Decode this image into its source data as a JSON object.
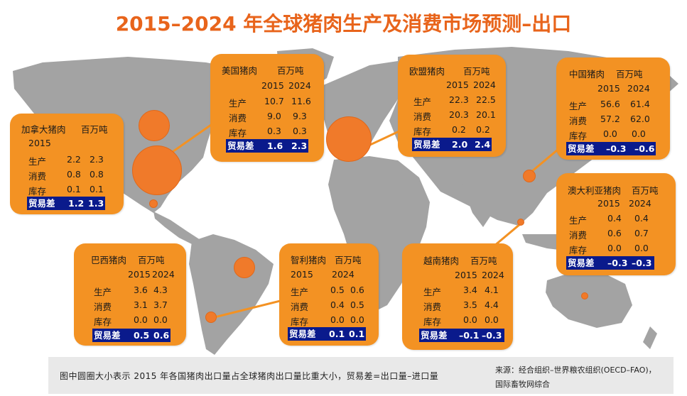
{
  "title": "2015–2024 年全球猪肉生产及消费市场预测–出口",
  "cards": {
    "canada": {
      "title": "加拿大猪肉",
      "unit": "百万吨",
      "year1": "2015",
      "year2": "",
      "rows": [
        {
          "label": "生产",
          "v1": "2.2",
          "v2": "2.3"
        },
        {
          "label": "消费",
          "v1": "0.8",
          "v2": "0.8"
        },
        {
          "label": "库存",
          "v1": "0.1",
          "v2": "0.1"
        }
      ],
      "trade": {
        "label": "贸易差",
        "v1": "1.2",
        "v2": "1.3"
      }
    },
    "usa": {
      "title": "美国猪肉",
      "unit": "百万吨",
      "year1": "2015",
      "year2": "2024",
      "rows": [
        {
          "label": "生产",
          "v1": "10.7",
          "v2": "11.6"
        },
        {
          "label": "消费",
          "v1": "9.0",
          "v2": "9.3"
        },
        {
          "label": "库存",
          "v1": "0.3",
          "v2": "0.3"
        }
      ],
      "trade": {
        "label": "贸易差",
        "v1": "1.6",
        "v2": "2.3"
      }
    },
    "eu": {
      "title": "欧盟猪肉",
      "unit": "百万吨",
      "year1": "2015",
      "year2": "2024",
      "rows": [
        {
          "label": "生产",
          "v1": "22.3",
          "v2": "22.5"
        },
        {
          "label": "消费",
          "v1": "20.3",
          "v2": "20.1"
        },
        {
          "label": "库存",
          "v1": "0.2",
          "v2": "0.2"
        }
      ],
      "trade": {
        "label": "贸易差",
        "v1": "2.0",
        "v2": "2.4"
      }
    },
    "china": {
      "title": "中国猪肉",
      "unit": "百万吨",
      "year1": "2015",
      "year2": "2024",
      "rows": [
        {
          "label": "生产",
          "v1": "56.6",
          "v2": "61.4"
        },
        {
          "label": "消费",
          "v1": "57.2",
          "v2": "62.0"
        },
        {
          "label": "库存",
          "v1": "0.0",
          "v2": "0.0"
        }
      ],
      "trade": {
        "label": "贸易差",
        "v1": "–0.3",
        "v2": "–0.6"
      }
    },
    "australia": {
      "title": "澳大利亚猪肉",
      "unit": "百万吨",
      "year1": "2015",
      "year2": "2024",
      "rows": [
        {
          "label": "生产",
          "v1": "0.4",
          "v2": "0.4"
        },
        {
          "label": "消费",
          "v1": "0.6",
          "v2": "0.7"
        },
        {
          "label": "库存",
          "v1": "0.0",
          "v2": "0.0"
        }
      ],
      "trade": {
        "label": "贸易差",
        "v1": "–0.3",
        "v2": "–0.3"
      }
    },
    "brazil": {
      "title": "巴西猪肉",
      "unit": "百万吨",
      "year1": "2015",
      "year2": "2024",
      "rows": [
        {
          "label": "生产",
          "v1": "3.6",
          "v2": "4.3"
        },
        {
          "label": "消费",
          "v1": "3.1",
          "v2": "3.7"
        },
        {
          "label": "库存",
          "v1": "0.0",
          "v2": "0.0"
        }
      ],
      "trade": {
        "label": "贸易差",
        "v1": "0.5",
        "v2": "0.6"
      }
    },
    "chile": {
      "title": "智利猪肉",
      "unit": "百万吨",
      "year1": "2015",
      "year2": "2024",
      "rows": [
        {
          "label": "生产",
          "v1": "0.5",
          "v2": "0.6"
        },
        {
          "label": "消费",
          "v1": "0.4",
          "v2": "0.5"
        },
        {
          "label": "库存",
          "v1": "0.0",
          "v2": "0.0"
        }
      ],
      "trade": {
        "label": "贸易差",
        "v1": "0.1",
        "v2": "0.1"
      }
    },
    "vietnam": {
      "title": "越南猪肉",
      "unit": "百万吨",
      "year1": "2015",
      "year2": "2024",
      "rows": [
        {
          "label": "生产",
          "v1": "3.4",
          "v2": "4.1"
        },
        {
          "label": "消费",
          "v1": "3.5",
          "v2": "4.4"
        },
        {
          "label": "库存",
          "v1": "0.0",
          "v2": "0.0"
        }
      ],
      "trade": {
        "label": "贸易差",
        "v1": "–0.1",
        "v2": "–0.3"
      }
    }
  },
  "footer": {
    "note": "图中圆圈大小表示 2015 年各国猪肉出口量占全球猪肉出口量比重大小，贸易差=出口量–进口量",
    "source_line1": "来源：经合组织–世界粮农组织(OECD–FAO)，",
    "source_line2": "国际畜牧网综合"
  },
  "colors": {
    "title": "#e8641b",
    "card": "#f39223",
    "trade_bar": "#0a1a8c",
    "map": "#9e9e9e",
    "circle": "#f07a2a"
  }
}
